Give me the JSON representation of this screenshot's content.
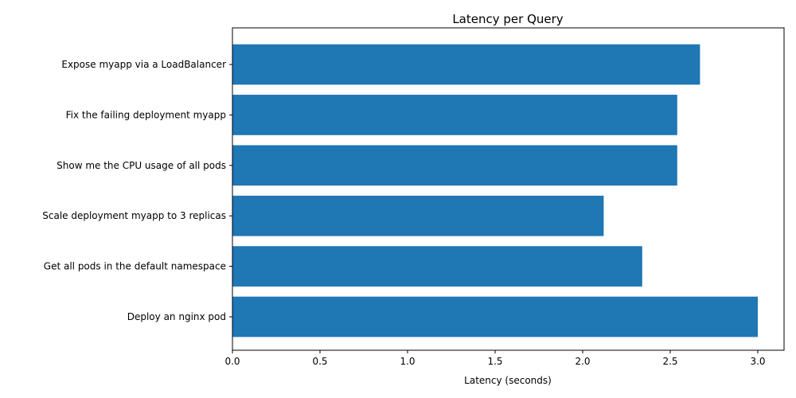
{
  "chart_data": {
    "type": "bar",
    "orientation": "horizontal",
    "title": "Latency per Query",
    "xlabel": "Latency (seconds)",
    "ylabel": "",
    "xlim": [
      0,
      3.15
    ],
    "xticks": [
      0.0,
      0.5,
      1.0,
      1.5,
      2.0,
      2.5,
      3.0
    ],
    "xtick_labels": [
      "0.0",
      "0.5",
      "1.0",
      "1.5",
      "2.0",
      "2.5",
      "3.0"
    ],
    "grid": false,
    "legend": "none",
    "bar_color": "#1f77b4",
    "categories": [
      "Deploy an nginx pod",
      "Get all pods in the default namespace",
      "Scale deployment myapp to 3 replicas",
      "Show me the CPU usage of all pods",
      "Fix the failing deployment myapp",
      "Expose myapp via a LoadBalancer"
    ],
    "values": [
      3.0,
      2.34,
      2.12,
      2.54,
      2.54,
      2.67
    ]
  }
}
